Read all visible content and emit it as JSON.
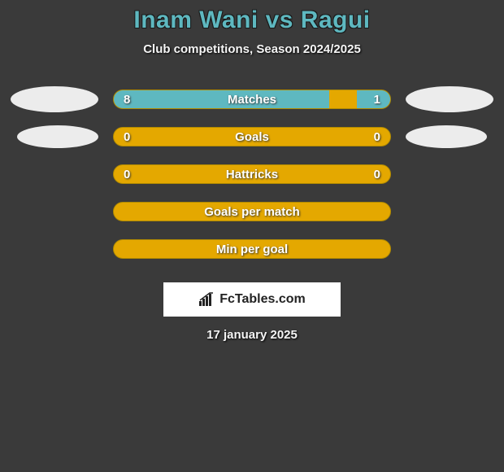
{
  "title": "Inam Wani vs Ragui",
  "subtitle": "Club competitions, Season 2024/2025",
  "colors": {
    "accent": "#5eb8c0",
    "bar_fill": "#e4a800",
    "bar_border": "#b08a00",
    "bg": "#3a3a3a",
    "text": "#f5f5f5"
  },
  "bars": [
    {
      "label": "Matches",
      "left_val": "8",
      "right_val": "1",
      "left_pct": 78,
      "right_pct": 12,
      "show_vals": true,
      "ovals": true,
      "oval_small": false
    },
    {
      "label": "Goals",
      "left_val": "0",
      "right_val": "0",
      "left_pct": 0,
      "right_pct": 0,
      "show_vals": true,
      "ovals": true,
      "oval_small": true
    },
    {
      "label": "Hattricks",
      "left_val": "0",
      "right_val": "0",
      "left_pct": 0,
      "right_pct": 0,
      "show_vals": true,
      "ovals": false
    },
    {
      "label": "Goals per match",
      "left_val": "",
      "right_val": "",
      "left_pct": 0,
      "right_pct": 0,
      "show_vals": false,
      "ovals": false
    },
    {
      "label": "Min per goal",
      "left_val": "",
      "right_val": "",
      "left_pct": 0,
      "right_pct": 0,
      "show_vals": false,
      "ovals": false
    }
  ],
  "branding": "FcTables.com",
  "date": "17 january 2025"
}
